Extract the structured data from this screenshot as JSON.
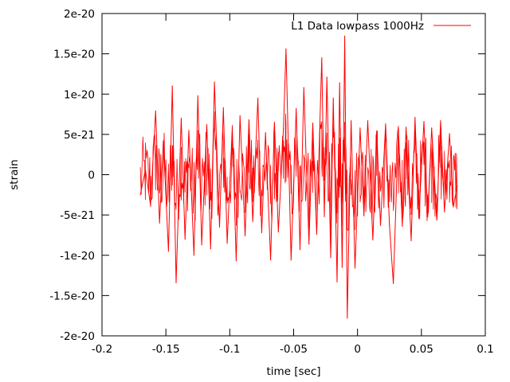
{
  "chart_data": {
    "type": "line",
    "title": "",
    "xlabel": "time [sec]",
    "ylabel": "strain",
    "xlim": [
      -0.2,
      0.1
    ],
    "ylim": [
      -2e-20,
      2e-20
    ],
    "x_ticks": [
      -0.2,
      -0.15,
      -0.1,
      -0.05,
      0,
      0.05,
      0.1
    ],
    "x_tick_labels": [
      "-0.2",
      "-0.15",
      "-0.1",
      "-0.05",
      "0",
      "0.05",
      "0.1"
    ],
    "y_ticks": [
      -2e-20,
      -1.5e-20,
      -1e-20,
      -5e-21,
      0,
      5e-21,
      1e-20,
      1.5e-20,
      2e-20
    ],
    "y_tick_labels": [
      "-2e-20",
      "-1.5e-20",
      "-1e-20",
      "-5e-21",
      "0",
      "5e-21",
      "1e-20",
      "1.5e-20",
      "2e-20"
    ],
    "grid": false,
    "legend_position": "top-right",
    "colors": {
      "series": "#ff0000",
      "axes": "#000000"
    },
    "series": [
      {
        "name": "L1 Data lowpass 1000Hz",
        "color": "#ff0000",
        "x": [
          -0.17,
          -0.166,
          -0.162,
          -0.158,
          -0.155,
          -0.152,
          -0.148,
          -0.145,
          -0.142,
          -0.138,
          -0.135,
          -0.132,
          -0.128,
          -0.125,
          -0.122,
          -0.118,
          -0.115,
          -0.112,
          -0.108,
          -0.105,
          -0.102,
          -0.098,
          -0.095,
          -0.092,
          -0.088,
          -0.085,
          -0.082,
          -0.078,
          -0.075,
          -0.072,
          -0.068,
          -0.065,
          -0.062,
          -0.058,
          -0.056,
          -0.052,
          -0.048,
          -0.045,
          -0.042,
          -0.038,
          -0.035,
          -0.032,
          -0.028,
          -0.026,
          -0.024,
          -0.021,
          -0.019,
          -0.016,
          -0.014,
          -0.012,
          -0.01,
          -0.008,
          -0.005,
          -0.002,
          0.002,
          0.005,
          0.008,
          0.012,
          0.015,
          0.018,
          0.022,
          0.025,
          0.028,
          0.032,
          0.035,
          0.038,
          0.042,
          0.045,
          0.048,
          0.052,
          0.055,
          0.058,
          0.062,
          0.065,
          0.068,
          0.072,
          0.075,
          0.078
        ],
        "y": [
          -2.5e-21,
          6e-22,
          -3.8e-21,
          7.9e-21,
          -6e-21,
          4.2e-21,
          -9.5e-21,
          1.1e-20,
          -1.34e-20,
          7e-21,
          -8e-21,
          5.5e-21,
          -1e-20,
          9.8e-21,
          -8.7e-21,
          6.2e-21,
          -9.2e-21,
          1.15e-20,
          -6.5e-21,
          8.3e-21,
          -8.5e-21,
          5.9e-21,
          -1.07e-20,
          7.3e-21,
          -7.6e-21,
          6.8e-21,
          -5.8e-21,
          9.5e-21,
          -7.2e-21,
          5.2e-21,
          -1.06e-20,
          6.5e-21,
          -7.1e-21,
          5.7e-21,
          1.56e-20,
          -1.06e-20,
          8.2e-21,
          -9.3e-21,
          1.08e-20,
          -8.6e-21,
          6.4e-21,
          -7.4e-21,
          1.45e-20,
          -5.2e-21,
          1.21e-20,
          -1.03e-20,
          9.5e-21,
          -1.33e-20,
          1.14e-20,
          -1.15e-20,
          1.72e-20,
          -1.78e-20,
          6.7e-21,
          -1.16e-20,
          5.8e-21,
          -5.1e-21,
          6.7e-21,
          -8.1e-21,
          5.4e-21,
          -6.3e-21,
          6.3e-21,
          -6.2e-21,
          -1.35e-20,
          5.7e-21,
          -6.4e-21,
          5.9e-21,
          -8.2e-21,
          7.1e-21,
          -5.4e-21,
          6.6e-21,
          -5.2e-21,
          5.8e-21,
          -5.6e-21,
          6.7e-21,
          -4.6e-21,
          5.1e-21,
          -4e-21,
          -1.4e-21
        ]
      }
    ]
  }
}
